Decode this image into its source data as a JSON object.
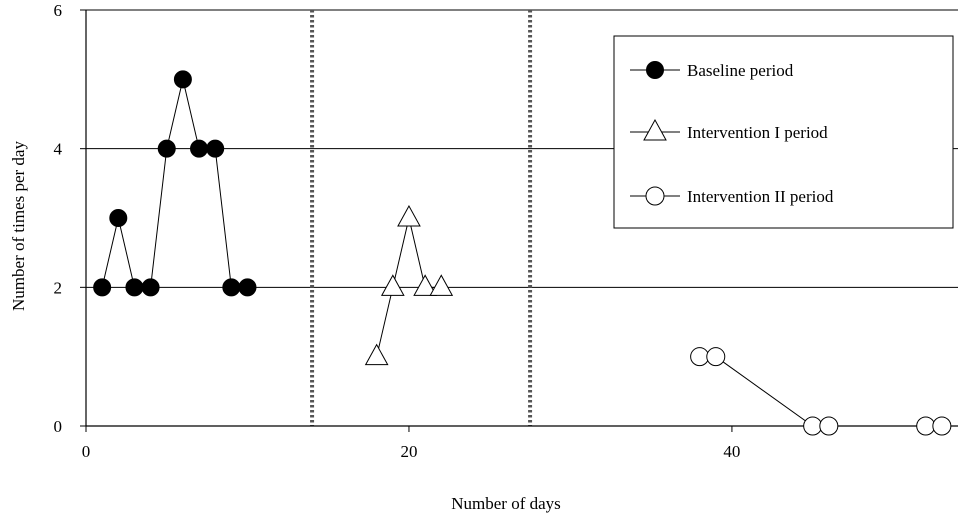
{
  "chart_data": {
    "type": "line",
    "xlabel": "Number of days",
    "ylabel": "Number of times per day",
    "xlim": [
      0,
      54
    ],
    "ylim": [
      0,
      6
    ],
    "x_ticks": [
      0,
      20,
      40
    ],
    "y_ticks": [
      0,
      2,
      4,
      6
    ],
    "grid": "horizontal",
    "legend_position": "top-right",
    "phase_lines": [
      14,
      27.5
    ],
    "series": [
      {
        "name": "Baseline period",
        "marker": "filled-circle",
        "x": [
          1,
          2,
          3,
          4,
          5,
          6,
          7,
          8,
          9,
          10
        ],
        "y": [
          2,
          3,
          2,
          2,
          4,
          5,
          4,
          4,
          2,
          2
        ]
      },
      {
        "name": "Intervention I period",
        "marker": "open-triangle",
        "x": [
          18,
          19,
          20,
          21,
          22
        ],
        "y": [
          1,
          2,
          3,
          2,
          2
        ]
      },
      {
        "name": "Intervention II period",
        "marker": "open-circle",
        "x": [
          38,
          39,
          45,
          46,
          52,
          53
        ],
        "y": [
          1,
          1,
          0,
          0,
          0,
          0
        ]
      }
    ]
  }
}
